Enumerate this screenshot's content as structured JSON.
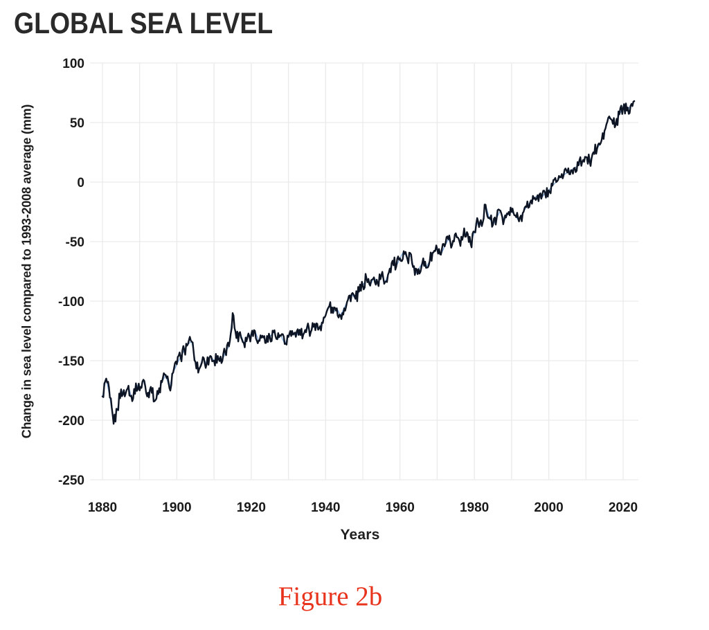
{
  "figure": {
    "caption_text": "Figure 2b",
    "caption_color": "#e8341c",
    "background": "#ffffff"
  },
  "chart_data": {
    "type": "line",
    "title": "GLOBAL SEA LEVEL",
    "xlabel": "Years",
    "ylabel": "Change in sea level compared to 1993-2008 average (mm)",
    "xlim": [
      1876.5,
      2024
    ],
    "ylim": [
      -250,
      100
    ],
    "x_ticks": [
      1880,
      1900,
      1920,
      1940,
      1960,
      1980,
      2000,
      2020
    ],
    "x_gridline_interval_years": 10,
    "y_ticks": [
      100,
      50,
      0,
      -50,
      -100,
      -150,
      -200,
      -250
    ],
    "grid": true,
    "legend": "none",
    "series": [
      {
        "name": "Change in sea level compared to 1993-2008 average (mm)",
        "start_year": 1880,
        "step_years": 1,
        "end_year": 2023,
        "values": [
          -180,
          -165,
          -181,
          -203,
          -191,
          -174,
          -180,
          -171,
          -184,
          -169,
          -175,
          -166,
          -180,
          -172,
          -184,
          -178,
          -168,
          -162,
          -173,
          -160,
          -153,
          -147,
          -141,
          -136,
          -134,
          -151,
          -157,
          -147,
          -153,
          -146,
          -150,
          -146,
          -152,
          -143,
          -138,
          -110,
          -131,
          -126,
          -135,
          -130,
          -128,
          -125,
          -133,
          -129,
          -135,
          -130,
          -126,
          -132,
          -129,
          -136,
          -130,
          -125,
          -130,
          -124,
          -128,
          -122,
          -126,
          -119,
          -124,
          -118,
          -112,
          -104,
          -110,
          -106,
          -112,
          -106,
          -99,
          -94,
          -98,
          -92,
          -87,
          -81,
          -87,
          -80,
          -85,
          -78,
          -84,
          -76,
          -66,
          -71,
          -64,
          -58,
          -65,
          -61,
          -78,
          -73,
          -68,
          -72,
          -66,
          -59,
          -56,
          -61,
          -54,
          -48,
          -53,
          -43,
          -50,
          -45,
          -42,
          -52,
          -42,
          -33,
          -37,
          -19,
          -30,
          -36,
          -30,
          -24,
          -32,
          -27,
          -25,
          -28,
          -33,
          -26,
          -21,
          -17,
          -14,
          -11,
          -14,
          -9,
          -7,
          -3,
          0,
          4,
          6,
          8,
          10,
          12,
          14,
          17,
          21,
          17,
          25,
          28,
          33,
          43,
          54,
          52,
          48,
          57,
          62,
          60,
          64,
          68
        ]
      }
    ],
    "colors": {
      "line": "#0d1524",
      "line_underlay": "#5b8fd6",
      "grid": "#eaeaea",
      "tick_text": "#1a1a1a",
      "title_text": "#2a2a2a"
    },
    "render_hints": {
      "points_per_year": 4,
      "jitter_mm": 5.5
    }
  }
}
